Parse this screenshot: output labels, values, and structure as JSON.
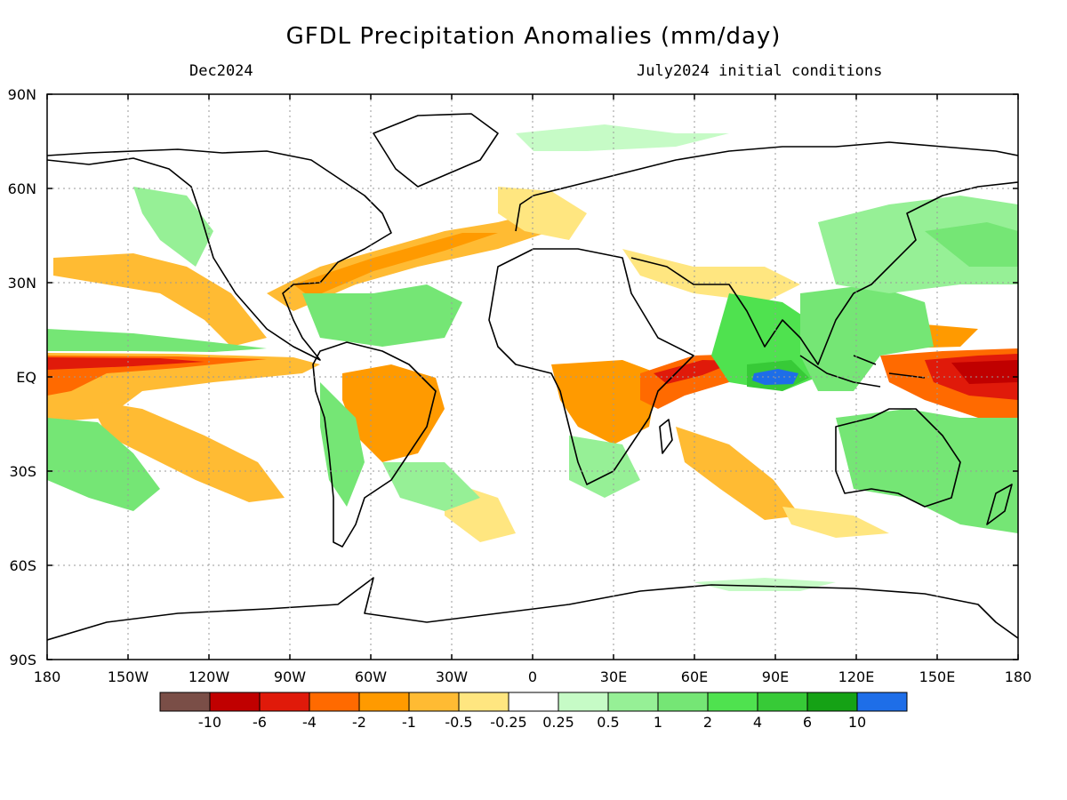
{
  "title": "GFDL Precipitation Anomalies (mm/day)",
  "subtitle_left": "Dec2024",
  "subtitle_right": "July2024 initial conditions",
  "map": {
    "lat_labels": [
      "90N",
      "60N",
      "30N",
      "EQ",
      "30S",
      "60S",
      "90S"
    ],
    "lon_labels": [
      "180",
      "150W",
      "120W",
      "90W",
      "60W",
      "30W",
      "0",
      "30E",
      "60E",
      "90E",
      "120E",
      "150E",
      "180"
    ]
  },
  "legend": {
    "colors": [
      "#7a4e47",
      "#c00000",
      "#e01a0a",
      "#ff6a00",
      "#ff9a00",
      "#ffbb33",
      "#ffe680",
      "#ffffff",
      "#c6fbc6",
      "#96f096",
      "#75e675",
      "#4fe24f",
      "#37ca37",
      "#15a215",
      "#1e6ee8"
    ],
    "labels": [
      "-10",
      "-6",
      "-4",
      "-2",
      "-1",
      "-0.5",
      "-0.25",
      "0.25",
      "0.5",
      "1",
      "2",
      "4",
      "6",
      "10"
    ]
  }
}
